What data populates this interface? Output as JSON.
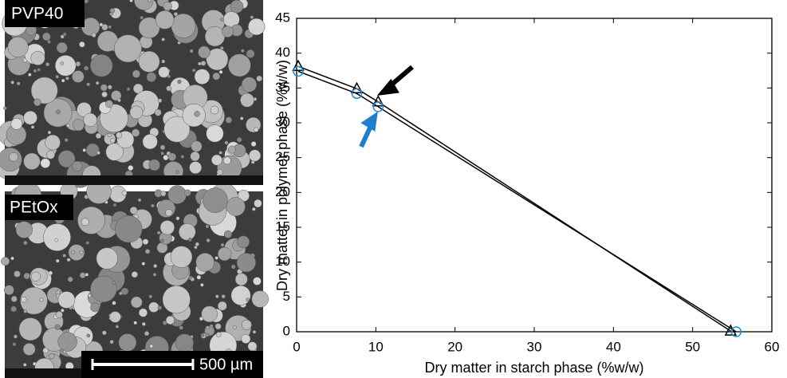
{
  "panels": [
    {
      "label": "PVP40"
    },
    {
      "label": "PEtOx",
      "scale_bar": "500 µm"
    }
  ],
  "chart_data": {
    "type": "scatter-line",
    "xlabel": "Dry matter in starch phase (%w/w)",
    "ylabel": "Dry matter in polymer phase (%w/w)",
    "xlim": [
      0,
      60
    ],
    "xticks": [
      0,
      10,
      20,
      30,
      40,
      50,
      60
    ],
    "ylim": [
      0,
      45
    ],
    "yticks": [
      0,
      5,
      10,
      15,
      20,
      25,
      30,
      35,
      40,
      45
    ],
    "series": [
      {
        "marker": "triangle",
        "color": "#000000",
        "line_color": "#000000",
        "x": [
          0.2,
          7.6,
          10.3,
          54.8
        ],
        "values": [
          38.1,
          34.9,
          33.0,
          0.1
        ]
      },
      {
        "marker": "circle",
        "color": "#1f8bd8",
        "line_color": "#000000",
        "x": [
          0.2,
          7.6,
          10.3,
          55.5
        ],
        "values": [
          37.4,
          34.2,
          32.3,
          0.0
        ]
      }
    ]
  }
}
